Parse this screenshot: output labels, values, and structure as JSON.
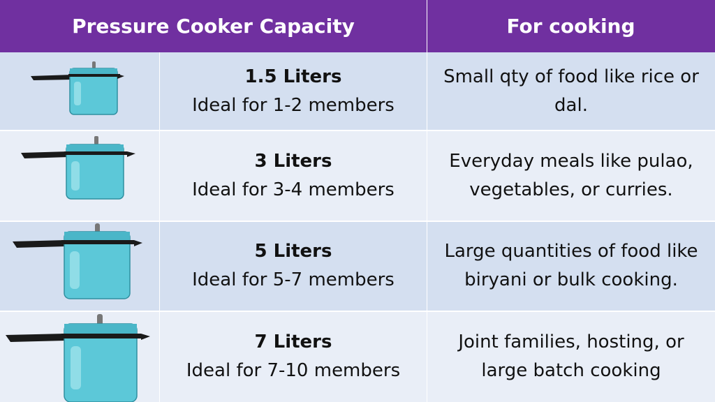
{
  "header": {
    "col_capacity": "Pressure Cooker Capacity",
    "col_cooking": "For cooking"
  },
  "colors": {
    "header_bg": "#7030a0",
    "row_dark": "#d4dff0",
    "row_light": "#e9eef7",
    "cooker_body": "#5cc8d8",
    "cooker_handle": "#1a1a1a"
  },
  "rows": [
    {
      "icon": "pressure-cooker-icon",
      "size": "1.5 Liters",
      "members": "Ideal for 1-2 members",
      "use": "Small qty of food like rice or dal."
    },
    {
      "icon": "pressure-cooker-icon",
      "size": "3 Liters",
      "members": "Ideal for 3-4 members",
      "use": "Everyday meals like pulao, vegetables, or curries."
    },
    {
      "icon": "pressure-cooker-icon",
      "size": "5 Liters",
      "members": "Ideal for 5-7 members",
      "use": "Large quantities of food like biryani or bulk cooking."
    },
    {
      "icon": "pressure-cooker-icon",
      "size": "7 Liters",
      "members": "Ideal for 7-10 members",
      "use": "Joint families, hosting, or large batch cooking"
    }
  ]
}
